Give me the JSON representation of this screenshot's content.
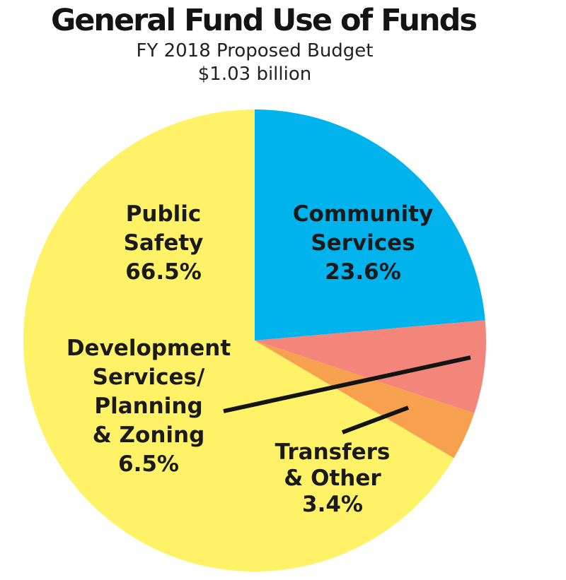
{
  "chart_data": {
    "type": "pie",
    "title": "General Fund Use of Funds",
    "subtitle": "FY 2018 Proposed Budget",
    "total_label": "$1.03 billion",
    "slices": [
      {
        "name": "Community Services",
        "label_lines": [
          "Community",
          "Services"
        ],
        "value_label": "23.6%",
        "value": 23.6,
        "color": "#00b3ec"
      },
      {
        "name": "Development Services/ Planning & Zoning",
        "label_lines": [
          "Development",
          "Services/",
          "Planning",
          "& Zoning"
        ],
        "value_label": "6.5%",
        "value": 6.5,
        "color": "#f4857b"
      },
      {
        "name": "Transfers & Other",
        "label_lines": [
          "Transfers",
          "& Other"
        ],
        "value_label": "3.4%",
        "value": 3.4,
        "color": "#f7a14f"
      },
      {
        "name": "Public Safety",
        "label_lines": [
          "Public",
          "Safety"
        ],
        "value_label": "66.5%",
        "value": 66.5,
        "color": "#fff266"
      }
    ],
    "start_angle_deg": 0,
    "direction": "clockwise",
    "legend": "none"
  }
}
